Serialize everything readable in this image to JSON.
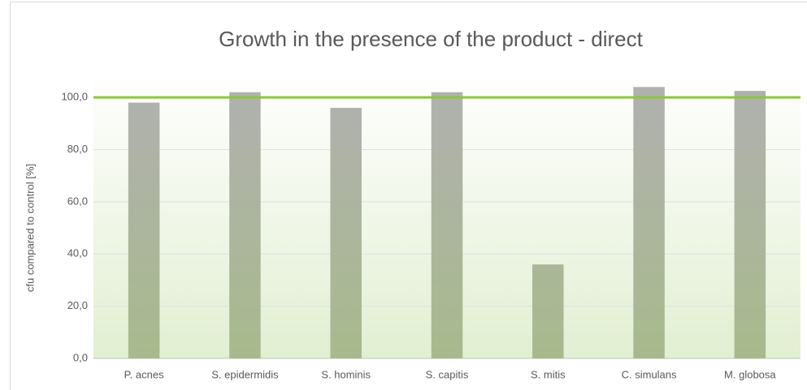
{
  "chart_data": {
    "type": "bar",
    "title": "Growth in the presence of the product - direct",
    "y_label": "cfu compared to control  [%]",
    "categories": [
      "P. acnes",
      "S. epidermidis",
      "S. hominis",
      "S. capitis",
      "S. mitis",
      "C. simulans",
      "M. globosa"
    ],
    "values": [
      98,
      102,
      96,
      102,
      36,
      104,
      102.5
    ],
    "ylim": [
      0,
      110
    ],
    "yticks": [
      {
        "value": 0,
        "label": "0,0"
      },
      {
        "value": 20,
        "label": "20,0"
      },
      {
        "value": 40,
        "label": "40,0"
      },
      {
        "value": 60,
        "label": "60,0"
      },
      {
        "value": 80,
        "label": "80,0"
      },
      {
        "value": 100,
        "label": "100,0"
      }
    ],
    "grid": true,
    "reference_line": {
      "value": 100,
      "color": "#8dc63f"
    }
  }
}
